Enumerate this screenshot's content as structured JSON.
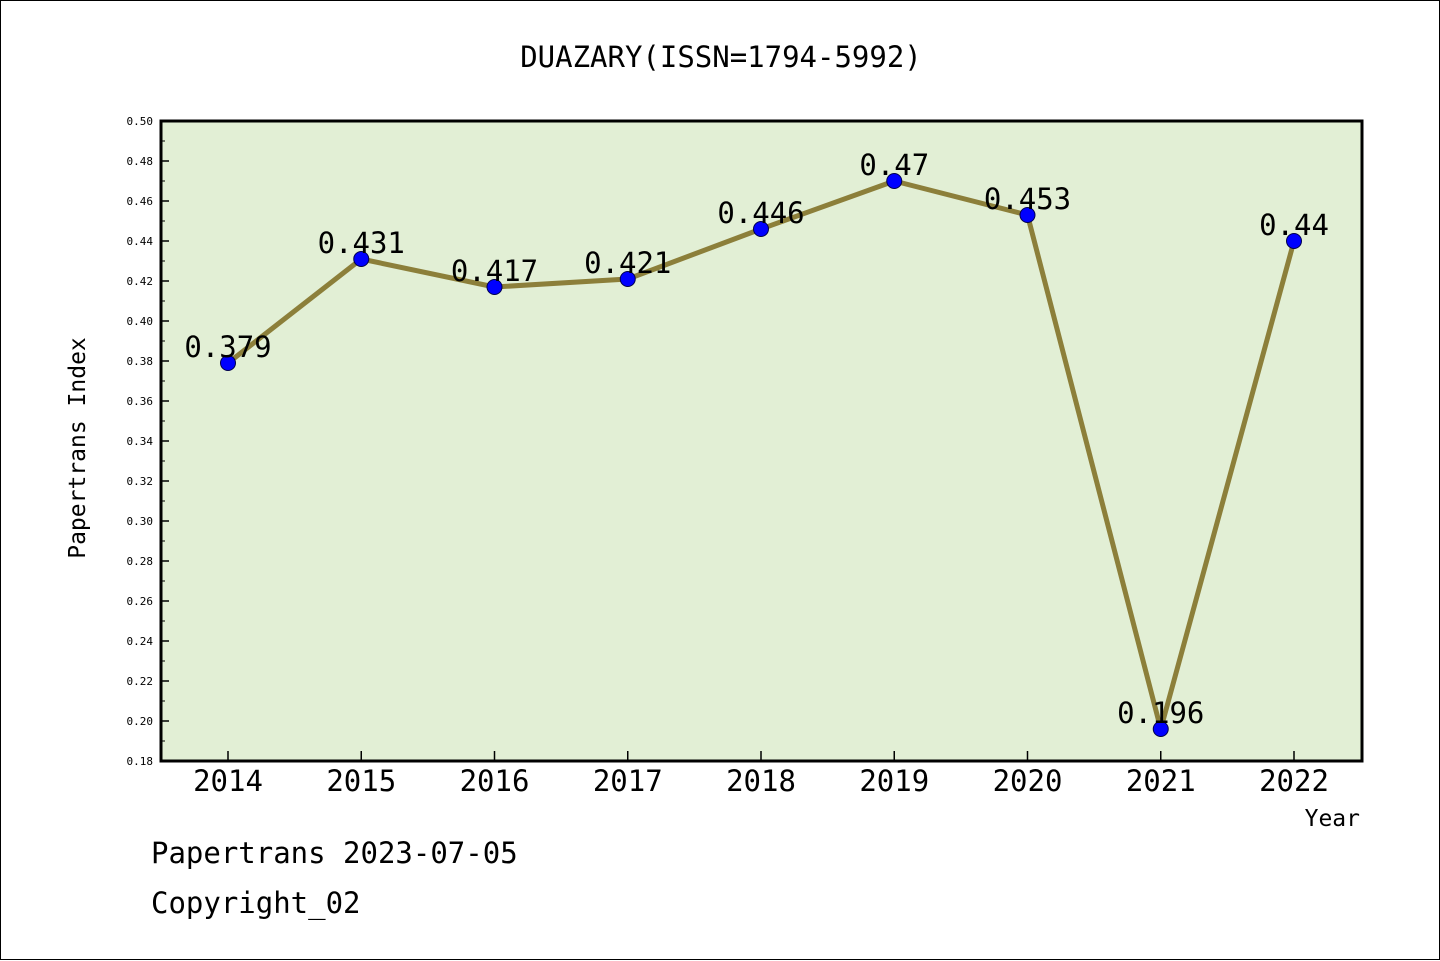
{
  "chart_data": {
    "type": "line",
    "title": "DUAZARY(ISSN=1794-5992)",
    "xlabel": "Year",
    "ylabel": "Papertrans Index",
    "categories": [
      "2014",
      "2015",
      "2016",
      "2017",
      "2018",
      "2019",
      "2020",
      "2021",
      "2022"
    ],
    "series": [
      {
        "values": [
          0.379,
          0.431,
          0.417,
          0.421,
          0.446,
          0.47,
          0.453,
          0.196,
          0.44
        ],
        "labels": [
          "0.379",
          "0.431",
          "0.417",
          "0.421",
          "0.446",
          "0.47",
          "0.453",
          "0.196",
          "0.44"
        ]
      }
    ],
    "ylim": [
      0.18,
      0.5
    ],
    "yticks": [
      "0.18",
      "0.20",
      "0.22",
      "0.24",
      "0.26",
      "0.28",
      "0.30",
      "0.32",
      "0.34",
      "0.36",
      "0.38",
      "0.40",
      "0.42",
      "0.44",
      "0.46",
      "0.48",
      "0.50"
    ],
    "grid": false,
    "legend": "none",
    "colors": {
      "plot_background": "#e2efd5",
      "line": "#8c7f3a",
      "marker": "#0000ff",
      "marker_edge": "#00004d",
      "frame": "#000000"
    }
  },
  "footer": {
    "line1": "Papertrans 2023-07-05",
    "line2": "Copyright_02"
  }
}
